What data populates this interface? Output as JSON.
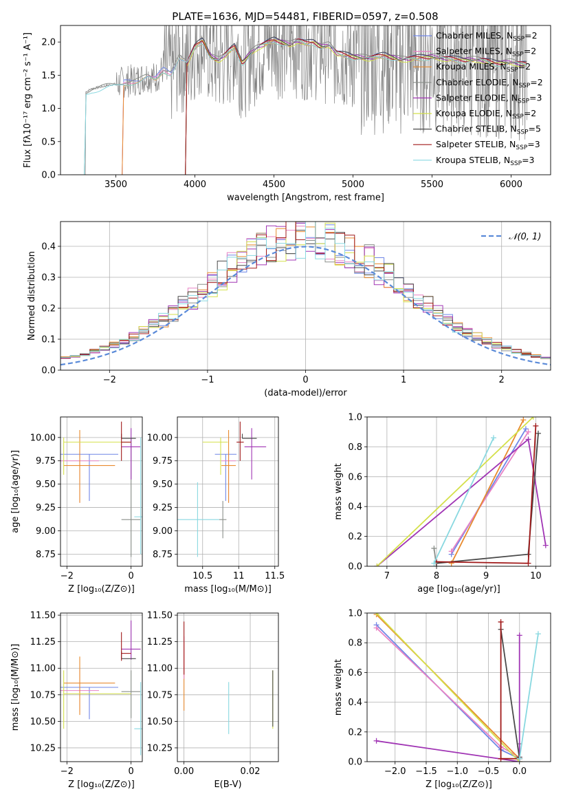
{
  "page_title": "PLATE=1636, MJD=54481, FIBERID=0597, z=0.508",
  "colors": {
    "Chabrier MILES": "#6f86e6",
    "Salpeter MILES": "#e882c4",
    "Kroupa MILES": "#e88a2e",
    "Chabrier ELODIE": "#8a8f8a",
    "Salpeter ELODIE": "#a034b4",
    "Kroupa ELODIE": "#d4e04a",
    "Chabrier STELIB": "#4a4a4a",
    "Salpeter STELIB": "#a01818",
    "Kroupa STELIB": "#88d8e0",
    "data": "#808080",
    "gaussian": "#5a8ad8"
  },
  "legend": {
    "spectrum": [
      {
        "model": "Chabrier MILES",
        "label": "Chabrier MILES, N",
        "sub": "SSP",
        "suffix": "=2"
      },
      {
        "model": "Salpeter MILES",
        "label": "Salpeter MILES, N",
        "sub": "SSP",
        "suffix": "=2"
      },
      {
        "model": "Kroupa MILES",
        "label": "Kroupa MILES, N",
        "sub": "SSP",
        "suffix": "=2"
      },
      {
        "model": "Chabrier ELODIE",
        "label": "Chabrier ELODIE, N",
        "sub": "SSP",
        "suffix": "=2"
      },
      {
        "model": "Salpeter ELODIE",
        "label": "Salpeter ELODIE, N",
        "sub": "SSP",
        "suffix": "=3"
      },
      {
        "model": "Kroupa ELODIE",
        "label": "Kroupa ELODIE, N",
        "sub": "SSP",
        "suffix": "=2"
      },
      {
        "model": "Chabrier STELIB",
        "label": "Chabrier STELIB, N",
        "sub": "SSP",
        "suffix": "=5"
      },
      {
        "model": "Salpeter STELIB",
        "label": "Salpeter STELIB, N",
        "sub": "SSP",
        "suffix": "=3"
      },
      {
        "model": "Kroupa STELIB",
        "label": "Kroupa STELIB, N",
        "sub": "SSP",
        "suffix": "=3"
      }
    ],
    "gaussian": "𝒩(0, 1)"
  },
  "chart_data": [
    {
      "id": "spectrum",
      "type": "line",
      "title": "PLATE=1636, MJD=54481, FIBERID=0597, z=0.508",
      "xlabel": "wavelength [Angstrom, rest frame]",
      "ylabel": "Flux [fλ10⁻¹⁷ erg cm⁻² s⁻¹ A⁻¹]",
      "xlim": [
        3150,
        6250
      ],
      "ylim": [
        0,
        2.25
      ],
      "xticks": [
        3500,
        4000,
        4500,
        5000,
        5500,
        6000
      ],
      "yticks": [
        0.0,
        0.5,
        1.0,
        1.5,
        2.0
      ],
      "grid": false,
      "legend_position": "right",
      "continuum": {
        "x": [
          3300,
          3310,
          3350,
          3400,
          3450,
          3500,
          3550,
          3600,
          3650,
          3700,
          3750,
          3800,
          3850,
          3900,
          3950,
          4000,
          4050,
          4100,
          4150,
          4200,
          4250,
          4300,
          4350,
          4400,
          4450,
          4500,
          4550,
          4600,
          4650,
          4700,
          4750,
          4800,
          4850,
          4900,
          5000,
          5100,
          5200,
          5300,
          5400,
          5500,
          5600,
          5700,
          5800,
          5900,
          6000,
          6100
        ],
        "y": [
          0.0,
          1.25,
          1.3,
          1.32,
          1.35,
          1.37,
          1.4,
          1.42,
          1.44,
          1.5,
          1.45,
          1.6,
          1.55,
          1.78,
          1.7,
          1.95,
          2.05,
          1.8,
          1.75,
          1.85,
          1.95,
          1.7,
          1.85,
          1.95,
          2.0,
          2.05,
          2.02,
          1.98,
          2.05,
          2.0,
          2.02,
          1.95,
          1.98,
          1.85,
          1.8,
          1.78,
          1.82,
          1.76,
          1.78,
          1.8,
          1.77,
          1.75,
          1.76,
          1.7,
          1.72,
          1.68
        ]
      },
      "model_starts": {
        "Chabrier MILES": 3550,
        "Salpeter MILES": 3550,
        "Kroupa MILES": 3550,
        "Chabrier ELODIE": 3300,
        "Salpeter ELODIE": 3950,
        "Kroupa ELODIE": 3950,
        "Chabrier STELIB": 3950,
        "Salpeter STELIB": 3950,
        "Kroupa STELIB": 3300
      },
      "model_ranges": {
        "end": 6100
      }
    },
    {
      "id": "residuals",
      "type": "bar",
      "xlabel": "(data-model)/error",
      "ylabel": "Normed distribution",
      "xlim": [
        -2.5,
        2.5
      ],
      "ylim": [
        0,
        0.48
      ],
      "xticks": [
        -2,
        -1,
        0,
        1,
        2
      ],
      "yticks": [
        0.0,
        0.1,
        0.2,
        0.3,
        0.4
      ],
      "grid": true,
      "legend_position": "top-right",
      "bin_width": 0.1,
      "gaussian": {
        "mean": 0,
        "sigma": 1
      }
    },
    {
      "id": "age-vs-Z",
      "type": "scatter",
      "xlabel": "Z [log₁₀(Z/Z⊙)]",
      "ylabel": "age  [log₁₀(age/yr)]",
      "xlim": [
        -2.2,
        0.35
      ],
      "ylim": [
        8.62,
        10.22
      ],
      "xticks": [
        -2,
        0
      ],
      "yticks": [
        8.75,
        9.0,
        9.25,
        9.5,
        9.75,
        10.0
      ],
      "ytick_labels": [
        "8.75",
        "9.00",
        "9.25",
        "9.50",
        "9.75",
        "10.00"
      ],
      "grid": true,
      "points": [
        {
          "model": "Chabrier MILES",
          "x": -1.3,
          "y": 9.82,
          "xerr": [
            0.9,
            0.9
          ],
          "yerr": [
            0.5,
            0.0
          ]
        },
        {
          "model": "Salpeter MILES",
          "x": -1.6,
          "y": 9.75,
          "xerr": [
            0.6,
            0.6
          ],
          "yerr": [
            0.45,
            0.1
          ]
        },
        {
          "model": "Kroupa MILES",
          "x": -1.6,
          "y": 9.7,
          "xerr": [
            0.5,
            1.1
          ],
          "yerr": [
            0.4,
            0.38
          ]
        },
        {
          "model": "Chabrier ELODIE",
          "x": 0.0,
          "y": 9.12,
          "xerr": [
            0.3,
            0.3
          ],
          "yerr": [
            0.4,
            0.88
          ]
        },
        {
          "model": "Salpeter ELODIE",
          "x": -0.0,
          "y": 9.9,
          "xerr": [
            0.3,
            0.3
          ],
          "yerr": [
            0.35,
            0.2
          ]
        },
        {
          "model": "Kroupa ELODIE",
          "x": -2.1,
          "y": 9.95,
          "xerr": [
            0.0,
            2.1
          ],
          "yerr": [
            0.35,
            0.05
          ]
        },
        {
          "model": "Chabrier STELIB",
          "x": -0.3,
          "y": 9.99,
          "xerr": [
            0.0,
            0.45
          ],
          "yerr": [
            0.0,
            0.05
          ]
        },
        {
          "model": "Salpeter STELIB",
          "x": -0.3,
          "y": 9.95,
          "xerr": [
            0.0,
            0.3
          ],
          "yerr": [
            0.2,
            0.22
          ]
        },
        {
          "model": "Kroupa STELIB",
          "x": 0.3,
          "y": 9.15,
          "xerr": [
            0.2,
            0.2
          ],
          "yerr": [
            0.4,
            0.85
          ]
        }
      ]
    },
    {
      "id": "age-vs-mass",
      "type": "scatter",
      "xlabel": "mass [log₁₀(M/M⊙)]",
      "ylabel": "",
      "xlim": [
        10.15,
        11.55
      ],
      "ylim": [
        8.62,
        10.22
      ],
      "xticks": [
        10.5,
        11.0,
        11.5
      ],
      "yticks": [
        8.75,
        9.0,
        9.25,
        9.5,
        9.75,
        10.0
      ],
      "ytick_labels": [
        "8.75",
        "9.00",
        "9.25",
        "9.50",
        "9.75",
        "10.00"
      ],
      "grid": true,
      "points": [
        {
          "model": "Chabrier MILES",
          "x": 10.82,
          "y": 9.82,
          "xerr": [
            0.15,
            0.15
          ],
          "yerr": [
            0.5,
            0.0
          ]
        },
        {
          "model": "Salpeter MILES",
          "x": 10.86,
          "y": 9.75,
          "xerr": [
            0.1,
            0.1
          ],
          "yerr": [
            0.45,
            0.1
          ]
        },
        {
          "model": "Kroupa MILES",
          "x": 10.86,
          "y": 9.7,
          "xerr": [
            0.1,
            0.1
          ],
          "yerr": [
            0.4,
            0.38
          ]
        },
        {
          "model": "Chabrier ELODIE",
          "x": 10.78,
          "y": 9.12,
          "xerr": [
            0.05,
            0.05
          ],
          "yerr": [
            0.2,
            0.2
          ]
        },
        {
          "model": "Salpeter ELODIE",
          "x": 11.18,
          "y": 9.9,
          "xerr": [
            0.1,
            0.2
          ],
          "yerr": [
            0.35,
            0.2
          ]
        },
        {
          "model": "Kroupa ELODIE",
          "x": 10.75,
          "y": 9.95,
          "xerr": [
            0.25,
            0.1
          ],
          "yerr": [
            0.35,
            0.05
          ]
        },
        {
          "model": "Chabrier STELIB",
          "x": 11.05,
          "y": 9.99,
          "xerr": [
            0.0,
            0.2
          ],
          "yerr": [
            0.0,
            0.05
          ]
        },
        {
          "model": "Salpeter STELIB",
          "x": 11.02,
          "y": 9.95,
          "xerr": [
            0.05,
            0.05
          ],
          "yerr": [
            0.2,
            0.22
          ]
        },
        {
          "model": "Kroupa STELIB",
          "x": 10.43,
          "y": 9.12,
          "xerr": [
            0.3,
            0.3
          ],
          "yerr": [
            0.4,
            0.4
          ]
        }
      ]
    },
    {
      "id": "weight-vs-age",
      "type": "line",
      "xlabel": "age  [log₁₀(age/yr)]",
      "ylabel": "mass weight",
      "xlim": [
        6.6,
        10.3
      ],
      "ylim": [
        0,
        1
      ],
      "xticks": [
        7,
        8,
        9,
        10
      ],
      "yticks": [
        0.0,
        0.2,
        0.4,
        0.6,
        0.8,
        1.0
      ],
      "grid": true,
      "series": [
        {
          "model": "Chabrier MILES",
          "x": [
            8.3,
            9.8
          ],
          "y": [
            0.08,
            0.92
          ]
        },
        {
          "model": "Salpeter MILES",
          "x": [
            8.3,
            9.85
          ],
          "y": [
            0.1,
            0.9
          ]
        },
        {
          "model": "Kroupa MILES",
          "x": [
            8.3,
            9.75
          ],
          "y": [
            0.02,
            0.98
          ]
        },
        {
          "model": "Chabrier ELODIE",
          "x": [
            7.95,
            8.0
          ],
          "y": [
            0.12,
            0.0
          ]
        },
        {
          "model": "Salpeter ELODIE",
          "x": [
            6.8,
            9.85,
            10.2
          ],
          "y": [
            0.0,
            0.85,
            0.14
          ]
        },
        {
          "model": "Kroupa ELODIE",
          "x": [
            6.8,
            9.95
          ],
          "y": [
            0.0,
            1.0
          ]
        },
        {
          "model": "Chabrier STELIB",
          "x": [
            8.0,
            9.85,
            10.05
          ],
          "y": [
            0.02,
            0.08,
            0.89
          ]
        },
        {
          "model": "Salpeter STELIB",
          "x": [
            8.0,
            9.85,
            10.0
          ],
          "y": [
            0.03,
            0.02,
            0.94
          ]
        },
        {
          "model": "Kroupa STELIB",
          "x": [
            7.95,
            9.15
          ],
          "y": [
            0.02,
            0.86
          ]
        }
      ]
    },
    {
      "id": "mass-vs-Z",
      "type": "scatter",
      "xlabel": "Z [log₁₀(Z/Z⊙)]",
      "ylabel": "mass [log₁₀(M/M⊙)]",
      "xlim": [
        -2.2,
        0.35
      ],
      "ylim": [
        10.12,
        11.52
      ],
      "xticks": [
        -2,
        0
      ],
      "yticks": [
        10.25,
        10.5,
        10.75,
        11.0,
        11.25,
        11.5
      ],
      "ytick_labels": [
        "10.25",
        "10.50",
        "10.75",
        "11.00",
        "11.25",
        "11.50"
      ],
      "grid": true,
      "points": [
        {
          "model": "Chabrier MILES",
          "x": -1.3,
          "y": 10.82,
          "xerr": [
            0.9,
            0.9
          ],
          "yerr": [
            0.3,
            0.0
          ]
        },
        {
          "model": "Salpeter MILES",
          "x": -1.6,
          "y": 10.79,
          "xerr": [
            0.6,
            0.6
          ],
          "yerr": [
            0.2,
            0.2
          ]
        },
        {
          "model": "Kroupa MILES",
          "x": -1.6,
          "y": 10.86,
          "xerr": [
            0.5,
            1.1
          ],
          "yerr": [
            0.3,
            0.25
          ]
        },
        {
          "model": "Chabrier ELODIE",
          "x": 0.0,
          "y": 10.78,
          "xerr": [
            0.3,
            0.3
          ],
          "yerr": [
            0.25,
            0.2
          ]
        },
        {
          "model": "Salpeter ELODIE",
          "x": 0.0,
          "y": 11.18,
          "xerr": [
            0.3,
            0.3
          ],
          "yerr": [
            0.1,
            0.27
          ]
        },
        {
          "model": "Kroupa ELODIE",
          "x": -2.1,
          "y": 10.76,
          "xerr": [
            0.0,
            2.1
          ],
          "yerr": [
            0.33,
            0.22
          ]
        },
        {
          "model": "Chabrier STELIB",
          "x": -0.3,
          "y": 11.09,
          "xerr": [
            0.0,
            0.45
          ],
          "yerr": [
            0.0,
            0.07
          ]
        },
        {
          "model": "Salpeter STELIB",
          "x": -0.3,
          "y": 11.14,
          "xerr": [
            0.0,
            0.3
          ],
          "yerr": [
            0.07,
            0.2
          ]
        },
        {
          "model": "Kroupa STELIB",
          "x": 0.3,
          "y": 10.43,
          "xerr": [
            0.2,
            0.2
          ],
          "yerr": [
            0.25,
            0.44
          ]
        }
      ]
    },
    {
      "id": "mass-vs-ebv",
      "type": "scatter",
      "xlabel": "E(B-V)",
      "ylabel": "",
      "xlim": [
        -0.002,
        0.0285
      ],
      "ylim": [
        10.12,
        11.52
      ],
      "xticks": [
        0.0,
        0.02
      ],
      "xtick_labels": [
        "0.00",
        "0.02"
      ],
      "yticks": [
        10.25,
        10.5,
        10.75,
        11.0,
        11.25,
        11.5
      ],
      "ytick_labels": [
        "10.25",
        "10.50",
        "10.75",
        "11.00",
        "11.25",
        "11.50"
      ],
      "grid": true,
      "points": [
        {
          "model": "Kroupa MILES",
          "x": 0.0,
          "y": 11.05,
          "xerr": [
            0,
            0
          ],
          "yerr": [
            0.45,
            0.2
          ]
        },
        {
          "model": "Salpeter MILES",
          "x": 0.0,
          "y": 11.1,
          "xerr": [
            0,
            0
          ],
          "yerr": [
            0.2,
            0.2
          ]
        },
        {
          "model": "Salpeter STELIB",
          "x": 0.0,
          "y": 11.14,
          "xerr": [
            0,
            0
          ],
          "yerr": [
            0.2,
            0.3
          ]
        },
        {
          "model": "Kroupa STELIB",
          "x": 0.0135,
          "y": 10.63,
          "xerr": [
            0,
            0
          ],
          "yerr": [
            0.25,
            0.24
          ]
        },
        {
          "model": "Kroupa ELODIE",
          "x": 0.0268,
          "y": 10.76,
          "xerr": [
            0,
            0
          ],
          "yerr": [
            0.33,
            0.22
          ]
        },
        {
          "model": "Chabrier STELIB",
          "x": 0.0268,
          "y": 10.7,
          "xerr": [
            0,
            0
          ],
          "yerr": [
            0.25,
            0.28
          ]
        }
      ]
    },
    {
      "id": "weight-vs-Z",
      "type": "line",
      "xlabel": "Z [log₁₀(Z/Z⊙)]",
      "ylabel": "mass weight",
      "xlim": [
        -2.45,
        0.5
      ],
      "ylim": [
        0,
        1
      ],
      "xticks": [
        -2.0,
        -1.5,
        -1.0,
        -0.5,
        0.0
      ],
      "xtick_labels": [
        "−2.0",
        "−1.5",
        "−1.0",
        "−0.5",
        "0.0"
      ],
      "yticks": [
        0.0,
        0.2,
        0.4,
        0.6,
        0.8,
        1.0
      ],
      "grid": true,
      "series": [
        {
          "model": "Chabrier MILES",
          "x": [
            -2.3,
            -0.3,
            0.0
          ],
          "y": [
            0.92,
            0.08,
            0.02
          ]
        },
        {
          "model": "Salpeter MILES",
          "x": [
            -2.3,
            -0.3,
            0.0
          ],
          "y": [
            0.9,
            0.1,
            0.03
          ]
        },
        {
          "model": "Kroupa MILES",
          "x": [
            -2.3,
            0.0
          ],
          "y": [
            0.99,
            0.02
          ]
        },
        {
          "model": "Chabrier ELODIE",
          "x": [
            0.0,
            0.0
          ],
          "y": [
            0.0,
            0.12
          ]
        },
        {
          "model": "Salpeter ELODIE",
          "x": [
            -2.3,
            0.0,
            0.0
          ],
          "y": [
            0.14,
            0.0,
            0.85
          ]
        },
        {
          "model": "Kroupa ELODIE",
          "x": [
            -2.3,
            0.0
          ],
          "y": [
            1.0,
            0.0
          ]
        },
        {
          "model": "Chabrier STELIB",
          "x": [
            -0.3,
            0.0,
            0.0
          ],
          "y": [
            0.89,
            0.02,
            0.03
          ]
        },
        {
          "model": "Salpeter STELIB",
          "x": [
            -0.3,
            -0.3,
            0.0
          ],
          "y": [
            0.94,
            0.02,
            0.02
          ]
        },
        {
          "model": "Kroupa STELIB",
          "x": [
            0.0,
            0.3
          ],
          "y": [
            0.02,
            0.86
          ]
        }
      ]
    }
  ]
}
